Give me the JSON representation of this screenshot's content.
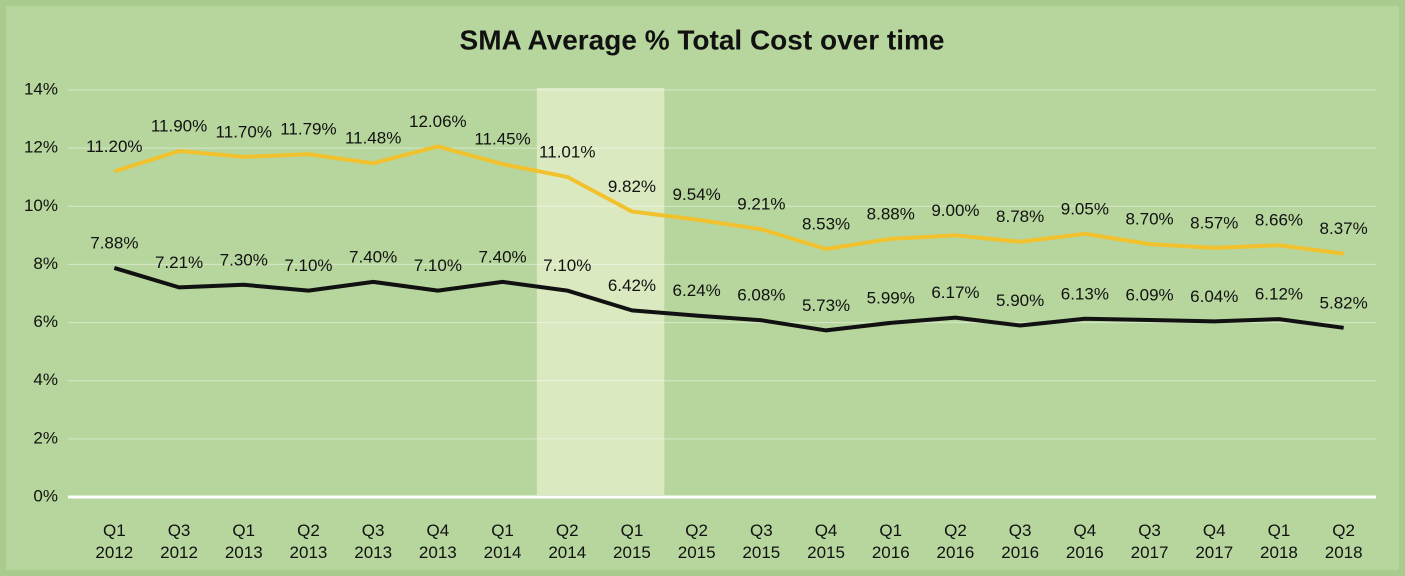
{
  "chart_data": {
    "type": "line",
    "title": "SMA Average % Total Cost over time",
    "categories": [
      "Q1 2012",
      "Q3 2012",
      "Q1 2013",
      "Q2 2013",
      "Q3 2013",
      "Q4 2013",
      "Q1 2014",
      "Q2 2014",
      "Q1 2015",
      "Q2 2015",
      "Q3 2015",
      "Q4 2015",
      "Q1 2016",
      "Q2 2016",
      "Q3 2016",
      "Q4 2016",
      "Q3 2017",
      "Q4 2017",
      "Q1 2018",
      "Q2 2018"
    ],
    "series": [
      {
        "color": "#f2c12e",
        "values": [
          11.2,
          11.9,
          11.7,
          11.79,
          11.48,
          12.06,
          11.45,
          11.01,
          9.82,
          9.54,
          9.21,
          8.53,
          8.88,
          9.0,
          8.78,
          9.05,
          8.7,
          8.57,
          8.66,
          8.37
        ],
        "value_labels": [
          "11.20%",
          "11.90%",
          "11.70%",
          "11.79%",
          "11.48%",
          "12.06%",
          "11.45%",
          "11.01%",
          "9.82%",
          "9.54%",
          "9.21%",
          "8.53%",
          "8.88%",
          "9.00%",
          "8.78%",
          "9.05%",
          "8.70%",
          "8.57%",
          "8.66%",
          "8.37%"
        ]
      },
      {
        "color": "#111111",
        "values": [
          7.88,
          7.21,
          7.3,
          7.1,
          7.4,
          7.1,
          7.4,
          7.1,
          6.42,
          6.24,
          6.08,
          5.73,
          5.99,
          6.17,
          5.9,
          6.13,
          6.09,
          6.04,
          6.12,
          5.82
        ],
        "value_labels": [
          "7.88%",
          "7.21%",
          "7.30%",
          "7.10%",
          "7.40%",
          "7.10%",
          "7.40%",
          "7.10%",
          "6.42%",
          "6.24%",
          "6.08%",
          "5.73%",
          "5.99%",
          "6.17%",
          "5.90%",
          "6.13%",
          "6.09%",
          "6.04%",
          "6.12%",
          "5.82%"
        ]
      }
    ],
    "ylim": [
      0,
      14
    ],
    "yticks": [
      {
        "value": 0,
        "label": "0%"
      },
      {
        "value": 2,
        "label": "2%"
      },
      {
        "value": 4,
        "label": "4%"
      },
      {
        "value": 6,
        "label": "6%"
      },
      {
        "value": 8,
        "label": "8%"
      },
      {
        "value": 10,
        "label": "10%"
      },
      {
        "value": 12,
        "label": "12%"
      },
      {
        "value": 14,
        "label": "14%"
      }
    ],
    "grid": true
  }
}
